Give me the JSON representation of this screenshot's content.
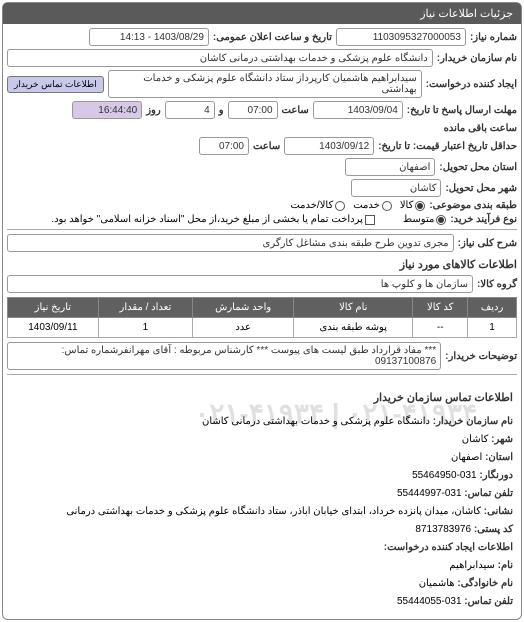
{
  "panel_title": "جزئیات اطلاعات نیاز",
  "fields": {
    "request_no_label": "شماره نیاز:",
    "request_no": "1103095327000053",
    "announce_datetime_label": "تاریخ و ساعت اعلان عمومی:",
    "announce_datetime": "1403/08/29 - 14:13",
    "buyer_name_label": "نام سازمان خریدار:",
    "buyer_name": "دانشگاه علوم پزشکی و خدمات بهداشتی درمانی کاشان",
    "creator_label": "ایجاد کننده درخواست:",
    "creator": "سیدابراهیم هاشمیان کارپرداز ستاد دانشگاه علوم پزشکی و خدمات بهداشتی",
    "buyer_contact_btn": "اطلاعات تماس خریدار",
    "reply_deadline_label": "مهلت ارسال پاسخ تا تاریخ:",
    "reply_date": "1403/09/04",
    "reply_time": "07:00",
    "time_label": "ساعت",
    "and_label": "و",
    "day_label": "روز",
    "days_remaining": "4",
    "remaining_time": "16:44:40",
    "remaining_label": "ساعت باقی مانده",
    "min_validity_label": "حداقل تاریخ اعتبار قیمت: تا تاریخ:",
    "min_validity_date": "1403/09/12",
    "min_validity_time": "07:00",
    "province_label": "استان محل تحویل:",
    "province": "اصفهان",
    "city_label": "شهر محل تحویل:",
    "city": "کاشان",
    "category_type_label": "طبقه بندی موضوعی:",
    "radio_kala": "کالا",
    "radio_khadamat": "خدمت",
    "radio_kala_khadamat": "کالا/خدمت",
    "process_type_label": "نوع فرآیند خرید:",
    "radio_motavaset": "متوسط",
    "payment_note": "پرداخت تمام یا بخشی از مبلغ خرید،از محل \"اسناد خزانه اسلامی\" خواهد بود.",
    "need_desc_label": "شرح کلی نیاز:",
    "need_desc": "مجری تدوین طرح طبقه بندی مشاغل کارگری",
    "goods_section_title": "اطلاعات کالاهای مورد نیاز",
    "goods_group_label": "گروه کالا:",
    "goods_group": "سازمان ها و کلوپ ها",
    "notes_label": "توضیحات خریدار:",
    "notes": "*** مفاد قرارداد طبق لیست های پیوست *** کارشناس مربوطه : آقای مهرانفرشماره تماس: 09137100876",
    "contact_section_title": "اطلاعات تماس سازمان خریدار"
  },
  "table": {
    "headers": [
      "ردیف",
      "کد کالا",
      "نام کالا",
      "واحد شمارش",
      "تعداد / مقدار",
      "تاریخ نیاز"
    ],
    "rows": [
      [
        "1",
        "--",
        "پوشه طبقه بندی",
        "عدد",
        "1",
        "1403/09/11"
      ]
    ]
  },
  "contact": {
    "org_label": "نام سازمان خریدار:",
    "org": "دانشگاه علوم پزشکی و خدمات بهداشتی درمانی کاشان",
    "city_label": "شهر:",
    "city": "کاشان",
    "province_label": "استان:",
    "province": "اصفهان",
    "fax_label": "دورنگار:",
    "fax": "031-55464950",
    "phone_label": "تلفن تماس:",
    "phone": "031-55444997",
    "address_label": "نشانی:",
    "address": "کاشان، میدان پانزده خرداد، ابتدای خیابان اباذر، ستاد دانشگاه علوم پزشکی و خدمات بهداشتی درمانی",
    "postal_label": "کد پستی:",
    "postal": "8713783976",
    "req_creator_section": "اطلاعات ایجاد کننده درخواست:",
    "name_label": "نام:",
    "name": "سیدابراهیم",
    "family_label": "نام خانوادگی:",
    "family": "هاشمیان",
    "contact_phone_label": "تلفن تماس:",
    "contact_phone": "031-55444055"
  },
  "watermark": "۰۲۱-۴۱۹۳۴ | ۰۲۱-۴۱۹۳۴"
}
